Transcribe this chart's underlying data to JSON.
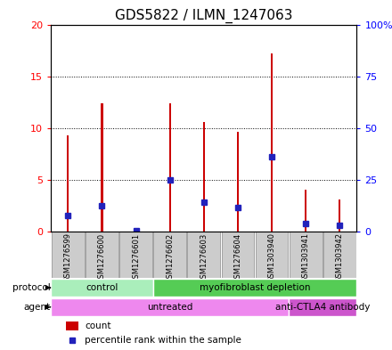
{
  "title": "GDS5822 / ILMN_1247063",
  "samples": [
    "GSM1276599",
    "GSM1276600",
    "GSM1276601",
    "GSM1276602",
    "GSM1276603",
    "GSM1276604",
    "GSM1303940",
    "GSM1303941",
    "GSM1303942"
  ],
  "counts": [
    9.3,
    12.4,
    0.1,
    12.4,
    10.6,
    9.6,
    17.2,
    4.0,
    3.1
  ],
  "percentiles": [
    7.5,
    12.5,
    0.25,
    25.0,
    14.0,
    11.5,
    36.0,
    4.0,
    3.0
  ],
  "ylim_left": [
    0,
    20
  ],
  "ylim_right": [
    0,
    100
  ],
  "yticks_left": [
    0,
    5,
    10,
    15,
    20
  ],
  "yticks_right": [
    0,
    25,
    50,
    75,
    100
  ],
  "ytick_labels_left": [
    "0",
    "5",
    "10",
    "15",
    "20"
  ],
  "ytick_labels_right": [
    "0",
    "25",
    "50",
    "75",
    "100%"
  ],
  "bar_color": "#cc0000",
  "percentile_color": "#2222bb",
  "bar_width": 0.06,
  "protocol_groups": [
    {
      "label": "control",
      "start": 0,
      "end": 3,
      "color": "#aaeebb"
    },
    {
      "label": "myofibroblast depletion",
      "start": 3,
      "end": 9,
      "color": "#55cc55"
    }
  ],
  "agent_groups": [
    {
      "label": "untreated",
      "start": 0,
      "end": 7,
      "color": "#ee88ee"
    },
    {
      "label": "anti-CTLA4 antibody",
      "start": 7,
      "end": 9,
      "color": "#cc55cc"
    }
  ],
  "protocol_label": "protocol",
  "agent_label": "agent",
  "legend_count_label": "count",
  "legend_percentile_label": "percentile rank within the sample",
  "title_fontsize": 11,
  "tick_fontsize": 8,
  "label_fontsize": 8,
  "background_color": "#ffffff",
  "plot_bg_color": "#ffffff",
  "sample_box_color": "#cccccc",
  "sample_box_edge": "#888888"
}
